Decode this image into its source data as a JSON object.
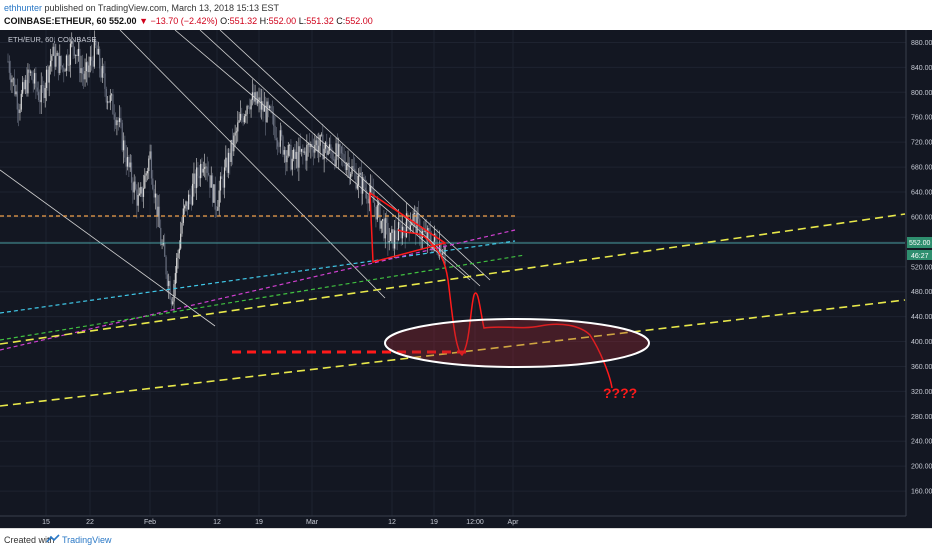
{
  "header": {
    "publisher": "ethhunter",
    "published_text": "published on TradingView.com, March 13, 2018 15:13 EST",
    "symbol": "COINBASE:ETHEUR, 60",
    "price": "552.00",
    "change": "−13.70 (−2.42%)",
    "open_label": "O:",
    "open": "551.32",
    "high_label": "H:",
    "high": "552.00",
    "low_label": "L:",
    "low": "551.32",
    "close_label": "C:",
    "close": "552.00"
  },
  "chart_label": "ETH/EUR, 60, COINBASE",
  "price_tag": "552.00",
  "price_tag_2": "46:27",
  "annotation": "????",
  "footer": {
    "created_with": "Created with",
    "brand": "TradingView"
  },
  "colors": {
    "background": "#131722",
    "up": "#d9d9d9",
    "down": "#6a7080",
    "annotation": "#ff1a1a",
    "yellow": "#e8e84a",
    "orange": "#f0a04a",
    "cyan": "#40c8e8",
    "magenta": "#d040d0",
    "green": "#40c040",
    "teal_line": "#5ac8c8",
    "price_tag": "#2f8f6f"
  },
  "chart_data": {
    "type": "line",
    "title": "ETH/EUR, 60, COINBASE",
    "xlabel": "",
    "ylabel": "",
    "x_ticks": [
      "15",
      "22",
      "Feb",
      "12",
      "19",
      "Mar",
      "12",
      "19",
      "12:00",
      "Apr"
    ],
    "y_ticks": [
      880,
      840,
      800,
      760,
      720,
      680,
      640,
      600,
      560,
      520,
      480,
      440,
      400,
      360,
      320,
      280,
      240,
      200,
      160
    ],
    "ylim": [
      120,
      900
    ],
    "series": [
      {
        "values": [
          850,
          780,
          830,
          790,
          860,
          840,
          880,
          820,
          870,
          800,
          760,
          680,
          620,
          700,
          560,
          470,
          600,
          650,
          700,
          620,
          680,
          740,
          790,
          780,
          760,
          720,
          690,
          700,
          720,
          710,
          700,
          690,
          660,
          640,
          600,
          560,
          580,
          600,
          570,
          560,
          552
        ]
      }
    ],
    "horizontal_lines": [
      {
        "color": "orange",
        "value": 598,
        "style": "dashed"
      },
      {
        "color": "teal",
        "value": 552,
        "style": "solid"
      }
    ],
    "annotation_text": "????"
  }
}
